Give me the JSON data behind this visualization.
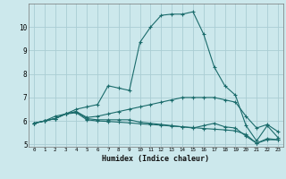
{
  "xlabel": "Humidex (Indice chaleur)",
  "bg_color": "#cce8ec",
  "grid_color": "#aacdd4",
  "line_color": "#1a6b6b",
  "xlim": [
    -0.5,
    23.5
  ],
  "ylim": [
    4.9,
    11.0
  ],
  "yticks": [
    5,
    6,
    7,
    8,
    9,
    10
  ],
  "xticks": [
    0,
    1,
    2,
    3,
    4,
    5,
    6,
    7,
    8,
    9,
    10,
    11,
    12,
    13,
    14,
    15,
    16,
    17,
    18,
    19,
    20,
    21,
    22,
    23
  ],
  "series": [
    {
      "x": [
        0,
        1,
        2,
        3,
        4,
        5,
        6,
        7,
        8,
        9,
        10,
        11,
        12,
        13,
        14,
        15,
        16,
        17,
        18,
        19,
        20,
        21,
        22,
        23
      ],
      "y": [
        5.9,
        6.0,
        6.2,
        6.3,
        6.5,
        6.6,
        6.7,
        7.5,
        7.4,
        7.3,
        9.35,
        10.0,
        10.5,
        10.55,
        10.55,
        10.65,
        9.7,
        8.3,
        7.5,
        7.1,
        5.8,
        5.15,
        5.8,
        5.3
      ]
    },
    {
      "x": [
        0,
        1,
        2,
        3,
        4,
        5,
        6,
        7,
        8,
        9,
        10,
        11,
        12,
        13,
        14,
        15,
        16,
        17,
        18,
        19,
        20,
        21,
        22,
        23
      ],
      "y": [
        5.9,
        6.0,
        6.1,
        6.3,
        6.4,
        6.15,
        6.2,
        6.3,
        6.4,
        6.5,
        6.6,
        6.7,
        6.8,
        6.9,
        7.0,
        7.0,
        7.0,
        7.0,
        6.9,
        6.8,
        6.2,
        5.7,
        5.85,
        5.55
      ]
    },
    {
      "x": [
        0,
        1,
        2,
        3,
        4,
        5,
        6,
        7,
        8,
        9,
        10,
        11,
        12,
        13,
        14,
        15,
        16,
        17,
        18,
        19,
        20,
        21,
        22,
        23
      ],
      "y": [
        5.9,
        6.0,
        6.1,
        6.3,
        6.4,
        6.1,
        6.05,
        6.05,
        6.05,
        6.05,
        5.95,
        5.9,
        5.85,
        5.8,
        5.75,
        5.7,
        5.8,
        5.9,
        5.75,
        5.7,
        5.35,
        5.05,
        5.25,
        5.2
      ]
    },
    {
      "x": [
        0,
        1,
        2,
        3,
        4,
        5,
        6,
        7,
        8,
        9,
        10,
        11,
        12,
        13,
        14,
        15,
        16,
        17,
        18,
        19,
        20,
        21,
        22,
        23
      ],
      "y": [
        5.9,
        6.0,
        6.1,
        6.3,
        6.35,
        6.05,
        6.0,
        5.98,
        5.95,
        5.92,
        5.88,
        5.85,
        5.82,
        5.78,
        5.75,
        5.72,
        5.68,
        5.65,
        5.62,
        5.58,
        5.42,
        5.05,
        5.2,
        5.2
      ]
    }
  ]
}
